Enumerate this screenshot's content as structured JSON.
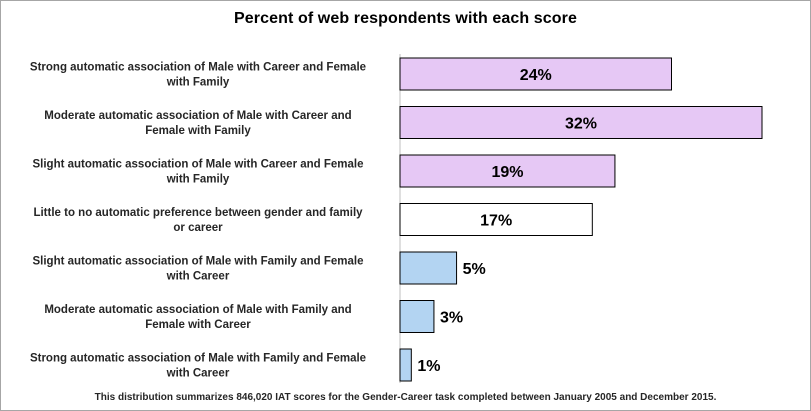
{
  "chart_data": {
    "type": "bar",
    "orientation": "horizontal",
    "title": "Percent of web respondents with each score",
    "footnote": "This distribution summarizes 846,020 IAT scores for the Gender-Career task completed between January  2005 and December 2015.",
    "categories": [
      [
        "Strong automatic association of Male with Career and Female",
        "with Family"
      ],
      [
        "Moderate automatic association of Male with Career and",
        "Female with Family"
      ],
      [
        "Slight automatic association of Male with Career and Female",
        "with Family"
      ],
      [
        "Little to no automatic preference between gender and family",
        "or career"
      ],
      [
        "Slight automatic association of Male with Family and Female",
        "with Career"
      ],
      [
        "Moderate automatic association of Male with Family and",
        "Female with Career"
      ],
      [
        "Strong automatic association of Male with Family and Female",
        "with Career"
      ]
    ],
    "values": [
      24,
      32,
      19,
      17,
      5,
      3,
      1
    ],
    "value_labels": [
      "24%",
      "32%",
      "19%",
      "17%",
      "5%",
      "3%",
      "1%"
    ],
    "bar_colors": [
      "#e6c8f5",
      "#e6c8f5",
      "#e6c8f5",
      "#ffffff",
      "#b3d4f2",
      "#b3d4f2",
      "#b3d4f2"
    ],
    "bar_border_color": "#000000",
    "xlim": [
      0,
      32
    ],
    "grid": false,
    "legend": false
  }
}
